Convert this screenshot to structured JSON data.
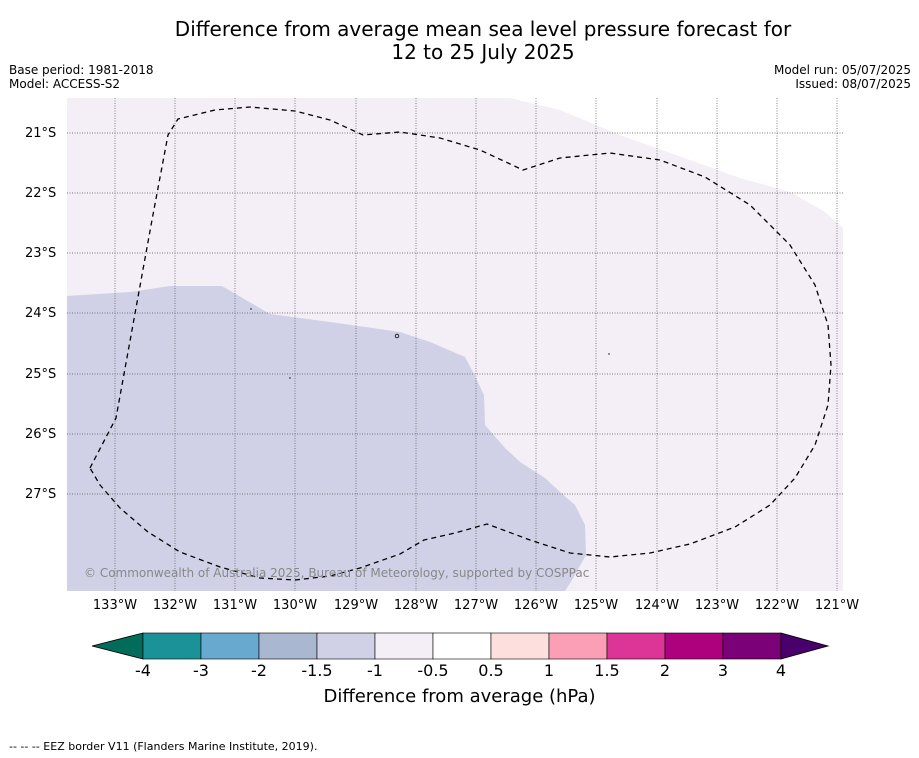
{
  "title_line1": "Difference from average mean sea level pressure forecast for",
  "title_line2": "12 to 25 July 2025",
  "base_period": "Base period: 1981-2018",
  "model": "Model: ACCESS-S2",
  "model_run": "Model run: 05/07/2025",
  "issued": "Issued: 08/07/2025",
  "copyright": "© Commonwealth of Australia 2025, Bureau of Meteorology, supported by COSPPac",
  "footer": "--  --  -- EEZ border V11 (Flanders Marine Institute, 2019).",
  "map": {
    "lat_labels": [
      "21°S",
      "22°S",
      "23°S",
      "24°S",
      "25°S",
      "26°S",
      "27°S"
    ],
    "lon_labels": [
      "133°W",
      "132°W",
      "131°W",
      "130°W",
      "129°W",
      "128°W",
      "127°W",
      "126°W",
      "125°W",
      "124°W",
      "123°W",
      "122°W",
      "121°W"
    ],
    "region_colors": {
      "anomaly_-1.5_to_-1": "#d0d1e6",
      "anomaly_-1_to_-0.5": "#f4eef6"
    },
    "eez_border": "dashed-black"
  },
  "colorbar": {
    "title": "Difference from average (hPa)",
    "tick_labels": [
      "-4",
      "-3",
      "-2",
      "-1.5",
      "-1",
      "-0.5",
      "0.5",
      "1",
      "1.5",
      "2",
      "3",
      "4"
    ],
    "colors": [
      "#1a9297",
      "#67a9cf",
      "#a9b7d1",
      "#d0d1e6",
      "#f4eef6",
      "#ffffff",
      "#fde0dd",
      "#fa9fb5",
      "#dd3497",
      "#ae017e",
      "#7a0177"
    ],
    "under_color": "#016c59",
    "over_color": "#49006a"
  }
}
